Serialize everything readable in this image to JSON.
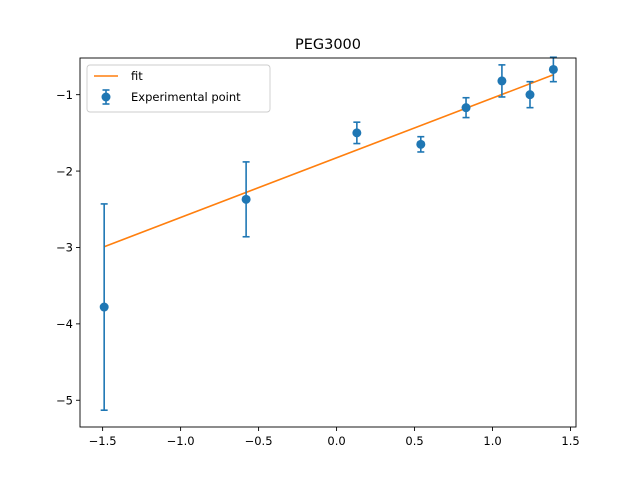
{
  "chart_data": {
    "type": "scatter",
    "title": "PEG3000",
    "xlabel": "",
    "ylabel": "",
    "xlim": [
      -1.645,
      1.535
    ],
    "ylim": [
      -5.35,
      -0.52
    ],
    "xticks": [
      -1.5,
      -1.0,
      -0.5,
      0.0,
      0.5,
      1.0,
      1.5
    ],
    "xtick_labels": [
      "−1.5",
      "−1.0",
      "−0.5",
      "0.0",
      "0.5",
      "1.0",
      "1.5"
    ],
    "yticks": [
      -5,
      -4,
      -3,
      -2,
      -1
    ],
    "ytick_labels": [
      "−5",
      "−4",
      "−3",
      "−2",
      "−1"
    ],
    "grid": false,
    "legend_position": "upper-left",
    "series": [
      {
        "name": "fit",
        "kind": "line",
        "color": "#ff7f0e",
        "x": [
          -1.49,
          1.39
        ],
        "y": [
          -2.99,
          -0.74
        ]
      },
      {
        "name": "Experimental point",
        "kind": "errorbar",
        "color": "#1f77b4",
        "x": [
          -1.49,
          -0.58,
          0.13,
          0.54,
          0.83,
          1.06,
          1.24,
          1.39
        ],
        "y": [
          -3.78,
          -2.37,
          -1.5,
          -1.65,
          -1.17,
          -0.82,
          -1.0,
          -0.67
        ],
        "yerr": [
          1.35,
          0.49,
          0.14,
          0.1,
          0.13,
          0.21,
          0.17,
          0.16
        ]
      }
    ]
  }
}
